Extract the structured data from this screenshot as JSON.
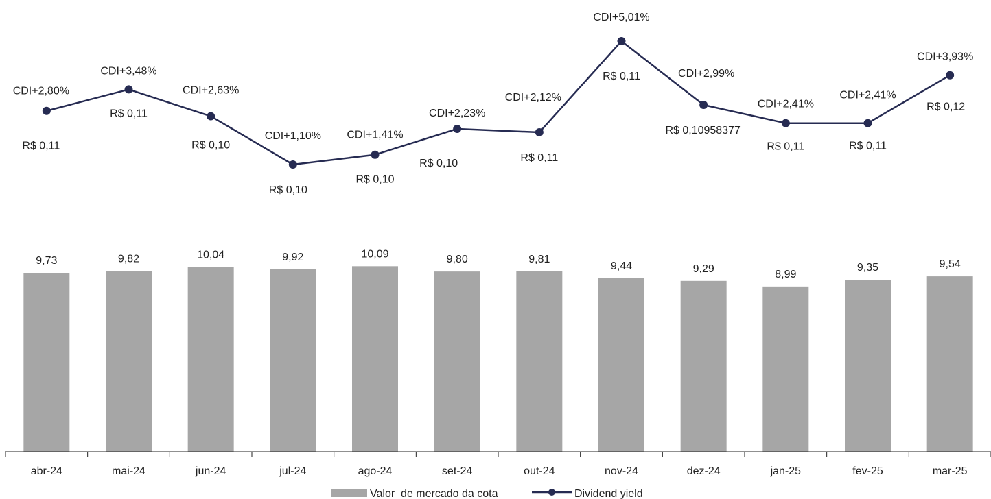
{
  "chart_data": {
    "type": "bar+line",
    "categories": [
      "abr-24",
      "mai-24",
      "jun-24",
      "jul-24",
      "ago-24",
      "set-24",
      "out-24",
      "nov-24",
      "dez-24",
      "jan-25",
      "fev-25",
      "mar-25"
    ],
    "series": [
      {
        "name": "Valor  de mercado da cota",
        "type": "bar",
        "color": "#a6a6a6",
        "values": [
          9.73,
          9.82,
          10.04,
          9.92,
          10.09,
          9.8,
          9.81,
          9.44,
          9.29,
          8.99,
          9.35,
          9.54
        ],
        "labels": [
          "9,73",
          "9,82",
          "10,04",
          "9,92",
          "10,09",
          "9,80",
          "9,81",
          "9,44",
          "9,29",
          "8,99",
          "9,35",
          "9,54"
        ]
      },
      {
        "name": "Dividend yield",
        "type": "line",
        "color": "#262b52",
        "values": [
          2.8,
          3.48,
          2.63,
          1.1,
          1.41,
          2.23,
          2.12,
          5.01,
          2.99,
          2.41,
          2.41,
          3.93
        ],
        "yield_labels": [
          "CDI+2,80%",
          "CDI+3,48%",
          "CDI+2,63%",
          "CDI+1,10%",
          "CDI+1,41%",
          "CDI+2,23%",
          "CDI+2,12%",
          "CDI+5,01%",
          "CDI+2,99%",
          "CDI+2,41%",
          "CDI+2,41%",
          "CDI+3,93%"
        ],
        "dividend_labels": [
          "R$ 0,11",
          "R$ 0,11",
          "R$ 0,10",
          "R$ 0,10",
          "R$ 0,10",
          "R$ 0,10",
          "R$ 0,11",
          "R$ 0,11",
          "R$ 0,10958377",
          "R$ 0,11",
          "R$ 0,11",
          "R$ 0,12"
        ]
      }
    ],
    "legend_position": "bottom-center",
    "grid": false
  }
}
